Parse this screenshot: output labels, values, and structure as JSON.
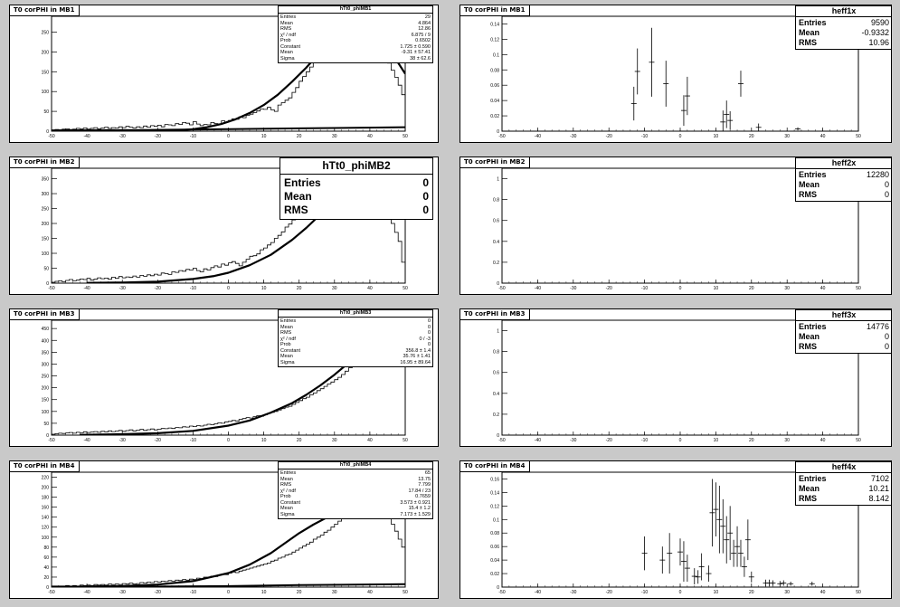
{
  "colors": {
    "background": "#c9c9c9",
    "pad": "#ffffff",
    "ink": "#000000"
  },
  "chart_data": [
    {
      "id": "mb1_hist",
      "type": "histogram",
      "pad_title": "T0 corPHI in MB1",
      "xlim": [
        -50,
        50
      ],
      "ylim": [
        0,
        290
      ],
      "xticks": [
        -50,
        -40,
        -30,
        -20,
        -10,
        0,
        10,
        20,
        30,
        40,
        50
      ],
      "yticks": [
        50,
        100,
        150,
        200,
        250
      ],
      "histogram": [
        2,
        4,
        3,
        5,
        6,
        4,
        5,
        7,
        6,
        8,
        5,
        7,
        9,
        6,
        8,
        10,
        7,
        9,
        8,
        11,
        9,
        12,
        10,
        8,
        11,
        9,
        13,
        10,
        14,
        12,
        15,
        11,
        17,
        16,
        14,
        19,
        17,
        22,
        20,
        16,
        24,
        18,
        14,
        17,
        16,
        22,
        19,
        18,
        26,
        23,
        27,
        31,
        30,
        36,
        34,
        40,
        43,
        47,
        51,
        56,
        55,
        60,
        54,
        50,
        66,
        72,
        78,
        84,
        98,
        110,
        126,
        138,
        150,
        162,
        178,
        194,
        205,
        214,
        222,
        232,
        240,
        246,
        252,
        258,
        262,
        268,
        270,
        272,
        266,
        258,
        248,
        234,
        218,
        198,
        186,
        172,
        154,
        136,
        116,
        92
      ],
      "fit_curve": [
        [
          -22,
          0
        ],
        [
          -18,
          1
        ],
        [
          -14,
          2
        ],
        [
          -10,
          5
        ],
        [
          -6,
          10
        ],
        [
          -2,
          18
        ],
        [
          2,
          30
        ],
        [
          6,
          46
        ],
        [
          10,
          66
        ],
        [
          14,
          92
        ],
        [
          18,
          125
        ],
        [
          22,
          160
        ],
        [
          26,
          200
        ],
        [
          30,
          240
        ],
        [
          34,
          270
        ],
        [
          38,
          285
        ],
        [
          42,
          270
        ],
        [
          46,
          200
        ],
        [
          50,
          145
        ]
      ],
      "bg_curve": [
        [
          -50,
          2
        ],
        [
          -25,
          3
        ],
        [
          0,
          5
        ],
        [
          20,
          7
        ],
        [
          50,
          10
        ]
      ],
      "stats": {
        "title": "hTt0_phiMB1",
        "size": "small",
        "rows": [
          [
            "Entries",
            "29"
          ],
          [
            "Mean",
            "4.864"
          ],
          [
            "RMS",
            "12.86"
          ],
          [
            "χ² / ndf",
            "6.875 / 9"
          ],
          [
            "Prob",
            "0.6502"
          ],
          [
            "Constant",
            "1.725 ± 0.590"
          ],
          [
            "Mean",
            "-9.31 ± 57.41"
          ],
          [
            "Sigma",
            "38 ± 62.6"
          ]
        ]
      }
    },
    {
      "id": "mb1_eff",
      "type": "scatter",
      "pad_title": "T0 corPHI in MB1",
      "xlim": [
        -50,
        50
      ],
      "ylim": [
        0,
        0.15
      ],
      "xticks": [
        -50,
        -40,
        -30,
        -20,
        -10,
        0,
        10,
        20,
        30,
        40,
        50
      ],
      "yticks": [
        0.02,
        0.04,
        0.06,
        0.08,
        0.1,
        0.12,
        0.14
      ],
      "ytick_labels": [
        "0.02",
        "0.04",
        "0.06",
        "0.08",
        "0.1",
        "0.12",
        "0.14"
      ],
      "points": [
        [
          -13,
          0.036,
          0.022
        ],
        [
          -12,
          0.078,
          0.03
        ],
        [
          -8,
          0.09,
          0.045
        ],
        [
          -4,
          0.062,
          0.03
        ],
        [
          1,
          0.027,
          0.02
        ],
        [
          2,
          0.046,
          0.025
        ],
        [
          12,
          0.012,
          0.015
        ],
        [
          13,
          0.022,
          0.018
        ],
        [
          14,
          0.014,
          0.012
        ],
        [
          17,
          0.062,
          0.017
        ],
        [
          22,
          0.005,
          0.005
        ],
        [
          33,
          0.003,
          0.002
        ]
      ],
      "stats": {
        "title": "heff1x",
        "size": "med",
        "rows": [
          [
            "Entries",
            "9590"
          ],
          [
            "Mean",
            "-0.9332"
          ],
          [
            "RMS",
            "10.96"
          ]
        ]
      }
    },
    {
      "id": "mb2_hist",
      "type": "histogram",
      "pad_title": "T0 corPHI in MB2",
      "xlim": [
        -50,
        50
      ],
      "ylim": [
        0,
        385
      ],
      "xticks": [
        -50,
        -40,
        -30,
        -20,
        -10,
        0,
        10,
        20,
        30,
        40,
        50
      ],
      "yticks": [
        50,
        100,
        150,
        200,
        250,
        300,
        350
      ],
      "histogram": [
        3,
        6,
        8,
        5,
        9,
        12,
        8,
        10,
        14,
        12,
        16,
        10,
        13,
        18,
        15,
        17,
        13,
        20,
        16,
        22,
        18,
        21,
        19,
        24,
        20,
        26,
        23,
        28,
        25,
        30,
        27,
        34,
        32,
        29,
        38,
        36,
        42,
        40,
        46,
        44,
        50,
        42,
        38,
        48,
        44,
        52,
        58,
        54,
        64,
        60,
        68,
        72,
        66,
        58,
        70,
        80,
        90,
        92,
        98,
        112,
        118,
        128,
        136,
        150,
        160,
        172,
        188,
        198,
        212,
        224,
        238,
        252,
        262,
        272,
        284,
        294,
        304,
        312,
        320,
        326,
        332,
        336,
        340,
        344,
        346,
        348,
        348,
        346,
        340,
        332,
        320,
        306,
        290,
        270,
        250,
        230,
        200,
        170,
        140,
        70
      ],
      "fit_curve": [
        [
          -40,
          1
        ],
        [
          -30,
          2
        ],
        [
          -20,
          5
        ],
        [
          -10,
          14
        ],
        [
          -4,
          24
        ],
        [
          0,
          35
        ],
        [
          6,
          60
        ],
        [
          12,
          95
        ],
        [
          18,
          145
        ],
        [
          22,
          185
        ],
        [
          26,
          230
        ],
        [
          30,
          275
        ],
        [
          34,
          310
        ],
        [
          38,
          335
        ],
        [
          42,
          340
        ],
        [
          46,
          320
        ],
        [
          50,
          270
        ]
      ],
      "bg_curve": [],
      "stats": {
        "title": "hTt0_phiMB2",
        "size": "big",
        "rows": [
          [
            "Entries",
            "0"
          ],
          [
            "Mean",
            "0"
          ],
          [
            "RMS",
            "0"
          ]
        ]
      }
    },
    {
      "id": "mb2_eff",
      "type": "scatter",
      "pad_title": "T0 corPHI in MB2",
      "xlim": [
        -50,
        50
      ],
      "ylim": [
        0,
        1.1
      ],
      "xticks": [
        -50,
        -40,
        -30,
        -20,
        -10,
        0,
        10,
        20,
        30,
        40,
        50
      ],
      "yticks": [
        0.2,
        0.4,
        0.6,
        0.8,
        1
      ],
      "ytick_labels": [
        "0.2",
        "0.4",
        "0.6",
        "0.8",
        "1"
      ],
      "points": [],
      "stats": {
        "title": "heff2x",
        "size": "med",
        "rows": [
          [
            "Entries",
            "12280"
          ],
          [
            "Mean",
            "0"
          ],
          [
            "RMS",
            "0"
          ]
        ]
      }
    },
    {
      "id": "mb3_hist",
      "type": "histogram",
      "pad_title": "T0 corPHI in MB3",
      "xlim": [
        -50,
        50
      ],
      "ylim": [
        0,
        485
      ],
      "xticks": [
        -50,
        -40,
        -30,
        -20,
        -10,
        0,
        10,
        20,
        30,
        40,
        50
      ],
      "yticks": [
        50,
        100,
        150,
        200,
        250,
        300,
        350,
        400,
        450
      ],
      "histogram": [
        4,
        6,
        8,
        7,
        9,
        11,
        8,
        12,
        10,
        14,
        11,
        13,
        15,
        12,
        16,
        14,
        18,
        15,
        17,
        20,
        16,
        19,
        22,
        18,
        21,
        24,
        20,
        23,
        26,
        22,
        25,
        28,
        27,
        30,
        28,
        32,
        31,
        35,
        34,
        38,
        36,
        40,
        38,
        42,
        46,
        44,
        48,
        52,
        50,
        56,
        58,
        62,
        60,
        66,
        70,
        74,
        72,
        78,
        82,
        80,
        86,
        92,
        96,
        100,
        106,
        112,
        118,
        122,
        130,
        138,
        146,
        154,
        160,
        170,
        178,
        188,
        196,
        206,
        216,
        224,
        234,
        244,
        256,
        270,
        284,
        300,
        316,
        334,
        352,
        370,
        390,
        408,
        424,
        440,
        452,
        460,
        444,
        420,
        398,
        380
      ],
      "fit_curve": [
        [
          -42,
          1
        ],
        [
          -30,
          4
        ],
        [
          -20,
          8
        ],
        [
          -10,
          18
        ],
        [
          0,
          40
        ],
        [
          6,
          62
        ],
        [
          12,
          95
        ],
        [
          18,
          135
        ],
        [
          22,
          170
        ],
        [
          26,
          210
        ],
        [
          30,
          255
        ],
        [
          34,
          305
        ],
        [
          38,
          360
        ],
        [
          42,
          410
        ],
        [
          46,
          430
        ],
        [
          50,
          420
        ]
      ],
      "bg_curve": [],
      "stats": {
        "title": "hTt0_phiMB3",
        "size": "small",
        "rows": [
          [
            "Entries",
            "0"
          ],
          [
            "Mean",
            "0"
          ],
          [
            "RMS",
            "0"
          ],
          [
            "χ² / ndf",
            "0 / -3"
          ],
          [
            "Prob",
            "0"
          ],
          [
            "Constant",
            "356.8 ± 1.4"
          ],
          [
            "Mean",
            "35.76 ± 1.41"
          ],
          [
            "Sigma",
            "16.95 ± 89.64"
          ]
        ]
      }
    },
    {
      "id": "mb3_eff",
      "type": "scatter",
      "pad_title": "T0 corPHI in MB3",
      "xlim": [
        -50,
        50
      ],
      "ylim": [
        0,
        1.1
      ],
      "xticks": [
        -50,
        -40,
        -30,
        -20,
        -10,
        0,
        10,
        20,
        30,
        40,
        50
      ],
      "yticks": [
        0.2,
        0.4,
        0.6,
        0.8,
        1
      ],
      "ytick_labels": [
        "0.2",
        "0.4",
        "0.6",
        "0.8",
        "1"
      ],
      "points": [],
      "stats": {
        "title": "heff3x",
        "size": "med",
        "rows": [
          [
            "Entries",
            "14776"
          ],
          [
            "Mean",
            "0"
          ],
          [
            "RMS",
            "0"
          ]
        ]
      }
    },
    {
      "id": "mb4_hist",
      "type": "histogram",
      "pad_title": "T0 corPHI in MB4",
      "xlim": [
        -50,
        50
      ],
      "ylim": [
        0,
        230
      ],
      "xticks": [
        -50,
        -40,
        -30,
        -20,
        -10,
        0,
        10,
        20,
        30,
        40,
        50
      ],
      "yticks": [
        20,
        40,
        60,
        80,
        100,
        120,
        140,
        160,
        180,
        200,
        220
      ],
      "histogram": [
        1,
        2,
        1,
        2,
        3,
        2,
        3,
        2,
        4,
        3,
        4,
        3,
        5,
        4,
        5,
        4,
        6,
        5,
        6,
        5,
        7,
        6,
        8,
        6,
        7,
        9,
        8,
        10,
        9,
        11,
        10,
        12,
        11,
        13,
        12,
        14,
        13,
        15,
        14,
        16,
        15,
        18,
        17,
        20,
        19,
        22,
        21,
        24,
        26,
        25,
        28,
        30,
        29,
        32,
        34,
        36,
        38,
        40,
        42,
        44,
        46,
        48,
        52,
        54,
        58,
        60,
        64,
        66,
        70,
        74,
        78,
        82,
        86,
        90,
        96,
        100,
        104,
        110,
        114,
        120,
        126,
        132,
        138,
        144,
        150,
        156,
        160,
        166,
        170,
        172,
        174,
        172,
        168,
        160,
        150,
        138,
        126,
        112,
        96,
        80
      ],
      "fit_curve": [
        [
          -40,
          1
        ],
        [
          -30,
          2
        ],
        [
          -20,
          5
        ],
        [
          -10,
          12
        ],
        [
          0,
          28
        ],
        [
          6,
          45
        ],
        [
          12,
          68
        ],
        [
          16,
          88
        ],
        [
          20,
          108
        ],
        [
          24,
          125
        ],
        [
          28,
          140
        ],
        [
          32,
          152
        ],
        [
          36,
          160
        ],
        [
          40,
          162
        ],
        [
          44,
          158
        ],
        [
          48,
          148
        ],
        [
          50,
          140
        ]
      ],
      "bg_curve": [
        [
          -50,
          1
        ],
        [
          -20,
          1
        ],
        [
          0,
          2
        ],
        [
          20,
          4
        ],
        [
          50,
          6
        ]
      ],
      "stats": {
        "title": "hTt0_phiMB4",
        "size": "small",
        "rows": [
          [
            "Entries",
            "65"
          ],
          [
            "Mean",
            "13.75"
          ],
          [
            "RMS",
            "7.799"
          ],
          [
            "χ² / ndf",
            "17.84 / 23"
          ],
          [
            "Prob",
            "0.7659"
          ],
          [
            "Constant",
            "3.573 ± 0.921"
          ],
          [
            "Mean",
            "15.4 ± 1.2"
          ],
          [
            "Sigma",
            "7.173 ± 1.529"
          ]
        ]
      }
    },
    {
      "id": "mb4_eff",
      "type": "scatter",
      "pad_title": "T0 corPHI in MB4",
      "xlim": [
        -50,
        50
      ],
      "ylim": [
        0,
        0.17
      ],
      "xticks": [
        -50,
        -40,
        -30,
        -20,
        -10,
        0,
        10,
        20,
        30,
        40,
        50
      ],
      "yticks": [
        0.02,
        0.04,
        0.06,
        0.08,
        0.1,
        0.12,
        0.14,
        0.16
      ],
      "ytick_labels": [
        "0.02",
        "0.04",
        "0.06",
        "0.08",
        "0.1",
        "0.12",
        "0.14",
        "0.16"
      ],
      "points": [
        [
          -10,
          0.05,
          0.025
        ],
        [
          -5,
          0.04,
          0.02
        ],
        [
          -3,
          0.05,
          0.03
        ],
        [
          0,
          0.052,
          0.02
        ],
        [
          1,
          0.038,
          0.03
        ],
        [
          2,
          0.028,
          0.02
        ],
        [
          4,
          0.016,
          0.012
        ],
        [
          5,
          0.015,
          0.01
        ],
        [
          6,
          0.03,
          0.02
        ],
        [
          8,
          0.02,
          0.012
        ],
        [
          9,
          0.11,
          0.05
        ],
        [
          10,
          0.115,
          0.04
        ],
        [
          11,
          0.1,
          0.05
        ],
        [
          12,
          0.09,
          0.04
        ],
        [
          13,
          0.07,
          0.035
        ],
        [
          14,
          0.08,
          0.04
        ],
        [
          15,
          0.05,
          0.02
        ],
        [
          16,
          0.06,
          0.03
        ],
        [
          17,
          0.05,
          0.02
        ],
        [
          18,
          0.03,
          0.015
        ],
        [
          19,
          0.07,
          0.03
        ],
        [
          20,
          0.015,
          0.008
        ],
        [
          24,
          0.006,
          0.005
        ],
        [
          25,
          0.006,
          0.005
        ],
        [
          26,
          0.006,
          0.004
        ],
        [
          28,
          0.005,
          0.004
        ],
        [
          29,
          0.006,
          0.004
        ],
        [
          31,
          0.005,
          0.003
        ],
        [
          37,
          0.005,
          0.003
        ]
      ],
      "stats": {
        "title": "heff4x",
        "size": "med",
        "rows": [
          [
            "Entries",
            "7102"
          ],
          [
            "Mean",
            "10.21"
          ],
          [
            "RMS",
            "8.142"
          ]
        ]
      }
    }
  ]
}
